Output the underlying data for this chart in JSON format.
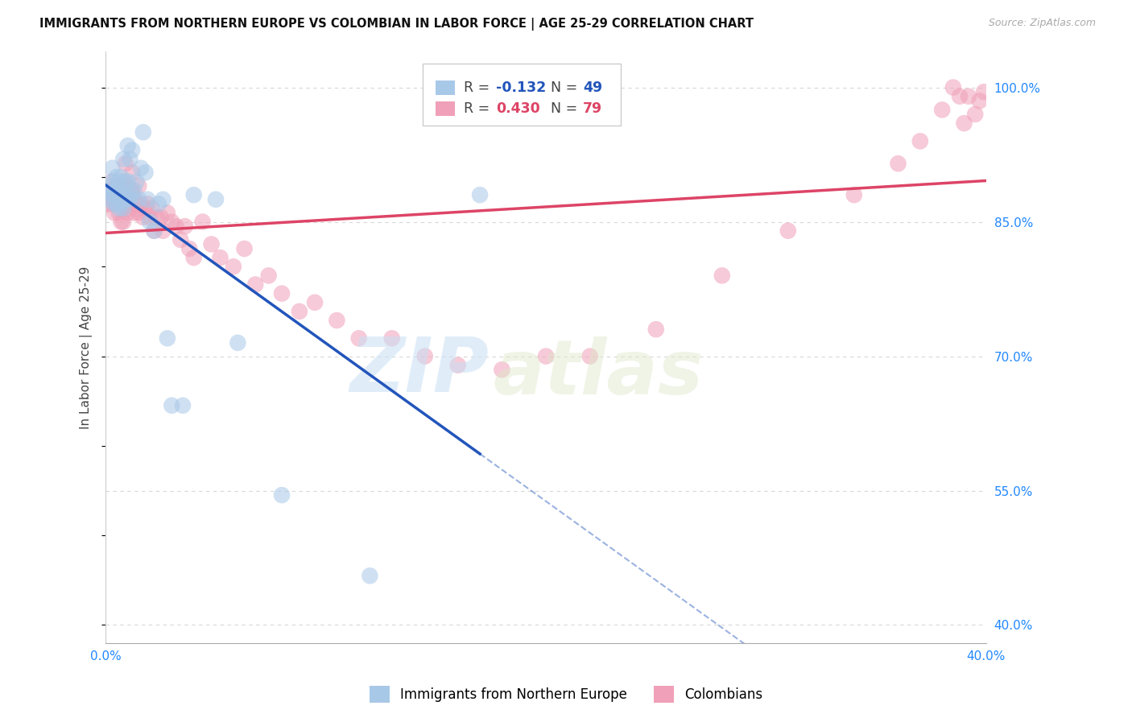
{
  "title": "IMMIGRANTS FROM NORTHERN EUROPE VS COLOMBIAN IN LABOR FORCE | AGE 25-29 CORRELATION CHART",
  "source": "Source: ZipAtlas.com",
  "ylabel": "In Labor Force | Age 25-29",
  "xlim": [
    0.0,
    0.4
  ],
  "ylim": [
    0.38,
    1.04
  ],
  "ytick_vals": [
    0.4,
    0.55,
    0.7,
    0.85,
    1.0
  ],
  "blue_R": -0.132,
  "blue_N": 49,
  "pink_R": 0.43,
  "pink_N": 79,
  "blue_color": "#a8c8e8",
  "pink_color": "#f0a0b8",
  "blue_line_color": "#2255bb",
  "pink_line_color": "#dd4466",
  "blue_x": [
    0.001,
    0.002,
    0.002,
    0.003,
    0.003,
    0.003,
    0.004,
    0.004,
    0.005,
    0.005,
    0.005,
    0.006,
    0.006,
    0.006,
    0.007,
    0.007,
    0.007,
    0.008,
    0.008,
    0.008,
    0.009,
    0.009,
    0.01,
    0.01,
    0.01,
    0.011,
    0.011,
    0.012,
    0.012,
    0.013,
    0.014,
    0.015,
    0.016,
    0.017,
    0.018,
    0.019,
    0.02,
    0.022,
    0.024,
    0.026,
    0.028,
    0.03,
    0.035,
    0.04,
    0.05,
    0.06,
    0.08,
    0.12,
    0.17
  ],
  "blue_y": [
    0.885,
    0.89,
    0.875,
    0.91,
    0.895,
    0.88,
    0.88,
    0.87,
    0.9,
    0.885,
    0.87,
    0.895,
    0.88,
    0.865,
    0.9,
    0.885,
    0.87,
    0.92,
    0.88,
    0.865,
    0.895,
    0.875,
    0.935,
    0.895,
    0.88,
    0.92,
    0.875,
    0.93,
    0.88,
    0.885,
    0.895,
    0.875,
    0.91,
    0.95,
    0.905,
    0.875,
    0.85,
    0.84,
    0.87,
    0.875,
    0.72,
    0.645,
    0.645,
    0.88,
    0.875,
    0.715,
    0.545,
    0.455,
    0.88
  ],
  "pink_x": [
    0.001,
    0.002,
    0.002,
    0.003,
    0.003,
    0.004,
    0.004,
    0.005,
    0.005,
    0.006,
    0.006,
    0.007,
    0.007,
    0.007,
    0.008,
    0.008,
    0.008,
    0.009,
    0.009,
    0.01,
    0.01,
    0.011,
    0.011,
    0.012,
    0.012,
    0.013,
    0.013,
    0.014,
    0.015,
    0.015,
    0.016,
    0.017,
    0.018,
    0.019,
    0.02,
    0.021,
    0.022,
    0.023,
    0.025,
    0.026,
    0.028,
    0.03,
    0.032,
    0.034,
    0.036,
    0.038,
    0.04,
    0.044,
    0.048,
    0.052,
    0.058,
    0.063,
    0.068,
    0.074,
    0.08,
    0.088,
    0.095,
    0.105,
    0.115,
    0.13,
    0.145,
    0.16,
    0.18,
    0.2,
    0.22,
    0.25,
    0.28,
    0.31,
    0.34,
    0.36,
    0.37,
    0.38,
    0.385,
    0.388,
    0.39,
    0.392,
    0.395,
    0.397,
    0.399
  ],
  "pink_y": [
    0.87,
    0.885,
    0.87,
    0.895,
    0.875,
    0.86,
    0.875,
    0.89,
    0.87,
    0.875,
    0.86,
    0.89,
    0.87,
    0.85,
    0.895,
    0.87,
    0.85,
    0.915,
    0.89,
    0.87,
    0.86,
    0.885,
    0.865,
    0.905,
    0.885,
    0.86,
    0.875,
    0.87,
    0.89,
    0.86,
    0.87,
    0.855,
    0.865,
    0.87,
    0.855,
    0.865,
    0.84,
    0.855,
    0.855,
    0.84,
    0.86,
    0.85,
    0.845,
    0.83,
    0.845,
    0.82,
    0.81,
    0.85,
    0.825,
    0.81,
    0.8,
    0.82,
    0.78,
    0.79,
    0.77,
    0.75,
    0.76,
    0.74,
    0.72,
    0.72,
    0.7,
    0.69,
    0.685,
    0.7,
    0.7,
    0.73,
    0.79,
    0.84,
    0.88,
    0.915,
    0.94,
    0.975,
    1.0,
    0.99,
    0.96,
    0.99,
    0.97,
    0.985,
    0.995
  ],
  "watermark_zip": "ZIP",
  "watermark_atlas": "atlas",
  "background_color": "#ffffff",
  "grid_color": "#d8d8d8"
}
